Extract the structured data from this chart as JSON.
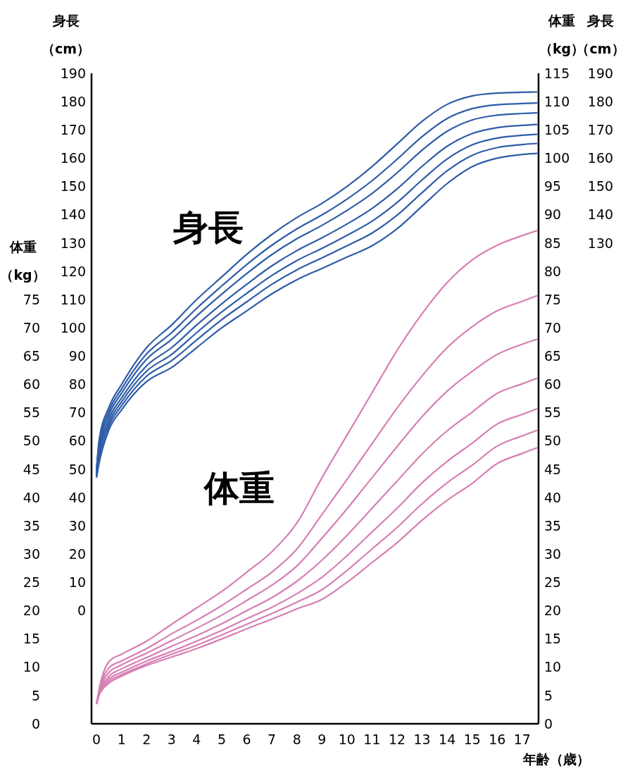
{
  "chart_data": {
    "type": "line",
    "xlabel": "年齢（歳）",
    "ylabel": "身長（cm）",
    "y2label": "体重（kg）",
    "y3label": "体重（kg）",
    "annotations": [
      "身長",
      "体重",
      "身長（cm）",
      "190",
      "180",
      "170",
      "160",
      "150",
      "140",
      "130"
    ],
    "x": [
      0,
      0.1,
      0.5,
      1,
      2,
      3,
      4,
      5,
      6,
      7,
      8,
      9,
      10,
      11,
      12,
      13,
      14,
      15,
      16,
      17,
      17.6
    ],
    "xlim": [
      -0.2,
      17.65
    ],
    "xticks": [
      0,
      1,
      2,
      3,
      4,
      5,
      6,
      7,
      8,
      9,
      10,
      11,
      12,
      13,
      14,
      15,
      16,
      17
    ],
    "ylim": [
      -40,
      190
    ],
    "yticks": [
      0,
      10,
      20,
      30,
      40,
      50,
      60,
      70,
      80,
      90,
      100,
      110,
      120,
      130,
      140,
      150,
      160,
      170,
      180,
      190
    ],
    "y2lim": [
      0,
      115
    ],
    "y2ticks": [
      0,
      5,
      10,
      15,
      20,
      25,
      30,
      35,
      40,
      45,
      50,
      55,
      60,
      65,
      70,
      75,
      80,
      85,
      90,
      95,
      100,
      105,
      110,
      115
    ],
    "y3lim": [
      0,
      115
    ],
    "y3ticks": [
      0,
      5,
      10,
      15,
      20,
      25,
      30,
      35,
      40,
      45,
      50,
      55,
      60,
      65,
      70,
      75
    ],
    "series": [
      {
        "color": "#2e5ca8",
        "values": [
          50,
          60,
          72,
          80,
          93,
          101,
          110,
          118,
          126,
          133,
          139,
          144,
          150,
          157,
          165,
          173,
          179,
          182,
          183,
          183.3,
          183.4
        ]
      },
      {
        "color": "#2e5ca8",
        "values": [
          49.5,
          58.6,
          70.6,
          78.4,
          90.8,
          98.3,
          106.9,
          114.8,
          122.4,
          129.2,
          135,
          139.9,
          145.5,
          152,
          159.6,
          167.6,
          174,
          177.5,
          178.9,
          179.3,
          179.5
        ]
      },
      {
        "color": "#2e5ca8",
        "values": [
          49,
          57.3,
          69.3,
          76.9,
          88.9,
          95.9,
          104.2,
          111.9,
          119.2,
          125.9,
          131.5,
          136.2,
          141.5,
          147.5,
          154.8,
          162.8,
          169.5,
          173.5,
          175.2,
          175.8,
          176
        ]
      },
      {
        "color": "#2e5ca8",
        "values": [
          48.4,
          55.8,
          67.8,
          75.2,
          86.6,
          93,
          101,
          108.5,
          115.4,
          121.9,
          127.3,
          131.8,
          136.7,
          142.2,
          149.1,
          157.1,
          164.2,
          168.7,
          170.8,
          171.6,
          171.9
        ]
      },
      {
        "color": "#2e5ca8",
        "values": [
          47.9,
          54.5,
          66.5,
          73.8,
          84.7,
          90.6,
          98.3,
          105.6,
          112.2,
          118.5,
          123.8,
          128.1,
          132.7,
          137.7,
          144.3,
          152.3,
          159.7,
          164.7,
          167.1,
          168.1,
          168.4
        ]
      },
      {
        "color": "#2e5ca8",
        "values": [
          47.5,
          53.3,
          65.3,
          72.4,
          82.9,
          88.4,
          95.7,
          102.9,
          109.2,
          115.4,
          120.5,
          124.7,
          129,
          133.5,
          139.8,
          147.8,
          155.5,
          161,
          163.7,
          164.8,
          165.2
        ]
      },
      {
        "color": "#2e5ca8",
        "values": [
          47,
          52,
          64,
          71,
          81,
          86,
          93,
          100,
          106,
          112,
          117,
          121,
          125,
          129,
          135,
          143,
          151,
          157,
          160,
          161.3,
          161.7
        ]
      },
      {
        "color": "#d67fb4",
        "axis": "y2",
        "values": [
          3.5,
          6,
          11,
          12.3,
          14.6,
          17.6,
          20.5,
          23.4,
          26.8,
          30.4,
          35.5,
          43.5,
          51,
          58.5,
          66,
          72.5,
          78,
          82,
          84.6,
          86.3,
          87.2
        ]
      },
      {
        "color": "#d67fb4",
        "axis": "y2",
        "values": [
          3.5,
          5.7,
          9.9,
          11.1,
          13.3,
          15.9,
          18.3,
          20.9,
          23.8,
          26.8,
          30.9,
          37,
          43.2,
          49.5,
          55.8,
          61.5,
          66.5,
          70.2,
          73,
          74.7,
          75.7
        ]
      },
      {
        "color": "#d67fb4",
        "axis": "y2",
        "values": [
          3.5,
          5.5,
          9.1,
          10.4,
          12.5,
          14.7,
          16.9,
          19.2,
          21.8,
          24.5,
          27.9,
          32.8,
          38,
          43.5,
          49,
          54.3,
          58.8,
          62.3,
          65.3,
          67.1,
          68
        ]
      },
      {
        "color": "#d67fb4",
        "axis": "y2",
        "values": [
          3.5,
          5.3,
          8.4,
          9.7,
          11.7,
          13.7,
          15.6,
          17.7,
          20,
          22.3,
          25.2,
          28.9,
          33.3,
          38.1,
          42.9,
          47.7,
          51.8,
          55.1,
          58.4,
          60.1,
          61.1
        ]
      },
      {
        "color": "#d67fb4",
        "axis": "y2",
        "values": [
          3.5,
          5.2,
          7.9,
          9.1,
          11.1,
          12.8,
          14.6,
          16.5,
          18.6,
          20.6,
          23,
          25.9,
          29.7,
          33.9,
          38.1,
          42.6,
          46.4,
          49.6,
          53,
          54.7,
          55.7
        ]
      },
      {
        "color": "#d67fb4",
        "axis": "y2",
        "values": [
          3.5,
          5.1,
          7.5,
          8.7,
          10.6,
          12.3,
          13.9,
          15.7,
          17.6,
          19.5,
          21.5,
          23.7,
          27.1,
          30.9,
          34.7,
          38.9,
          42.6,
          45.7,
          49.1,
          50.9,
          51.9
        ]
      },
      {
        "color": "#d67fb4",
        "axis": "y2",
        "values": [
          3.5,
          5,
          7.2,
          8.4,
          10.3,
          11.8,
          13.3,
          15,
          16.8,
          18.5,
          20.3,
          22,
          25,
          28.5,
          32,
          36,
          39.5,
          42.5,
          46,
          47.8,
          48.8
        ]
      }
    ]
  }
}
